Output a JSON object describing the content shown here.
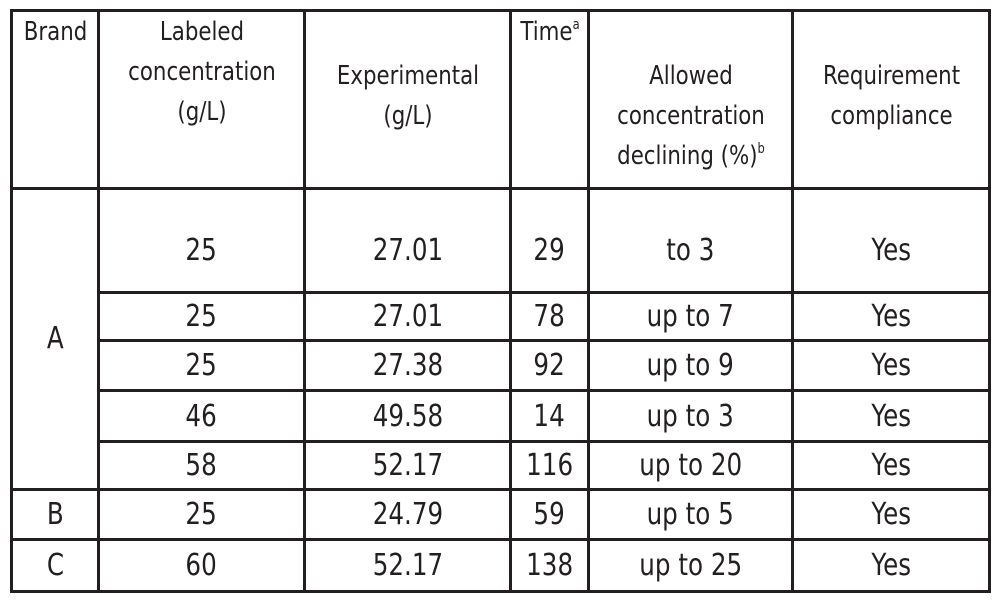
{
  "table": {
    "headers": {
      "brand": "Brand",
      "labeled": [
        "Labeled",
        "concentration",
        "(g/L)"
      ],
      "experimental": [
        "Experimental",
        "(g/L)"
      ],
      "time": "Time",
      "time_sup": "a",
      "allowed": [
        "Allowed",
        "concentration",
        "declining (%)"
      ],
      "allowed_sup": "b",
      "compliance": [
        "Requirement",
        "compliance"
      ]
    },
    "brands": [
      "A",
      "B",
      "C"
    ],
    "rows": [
      {
        "labeled": "25",
        "experimental": "27.01",
        "time": "29",
        "allowed": "to 3",
        "compliance": "Yes"
      },
      {
        "labeled": "25",
        "experimental": "27.01",
        "time": "78",
        "allowed": "up to 7",
        "compliance": "Yes"
      },
      {
        "labeled": "25",
        "experimental": "27.38",
        "time": "92",
        "allowed": "up to 9",
        "compliance": "Yes"
      },
      {
        "labeled": "46",
        "experimental": "49.58",
        "time": "14",
        "allowed": "up to 3",
        "compliance": "Yes"
      },
      {
        "labeled": "58",
        "experimental": "52.17",
        "time": "116",
        "allowed": "up to 20",
        "compliance": "Yes"
      },
      {
        "labeled": "25",
        "experimental": "24.79",
        "time": "59",
        "allowed": "up to 5",
        "compliance": "Yes"
      },
      {
        "labeled": "60",
        "experimental": "52.17",
        "time": "138",
        "allowed": "up to 25",
        "compliance": "Yes"
      }
    ]
  }
}
